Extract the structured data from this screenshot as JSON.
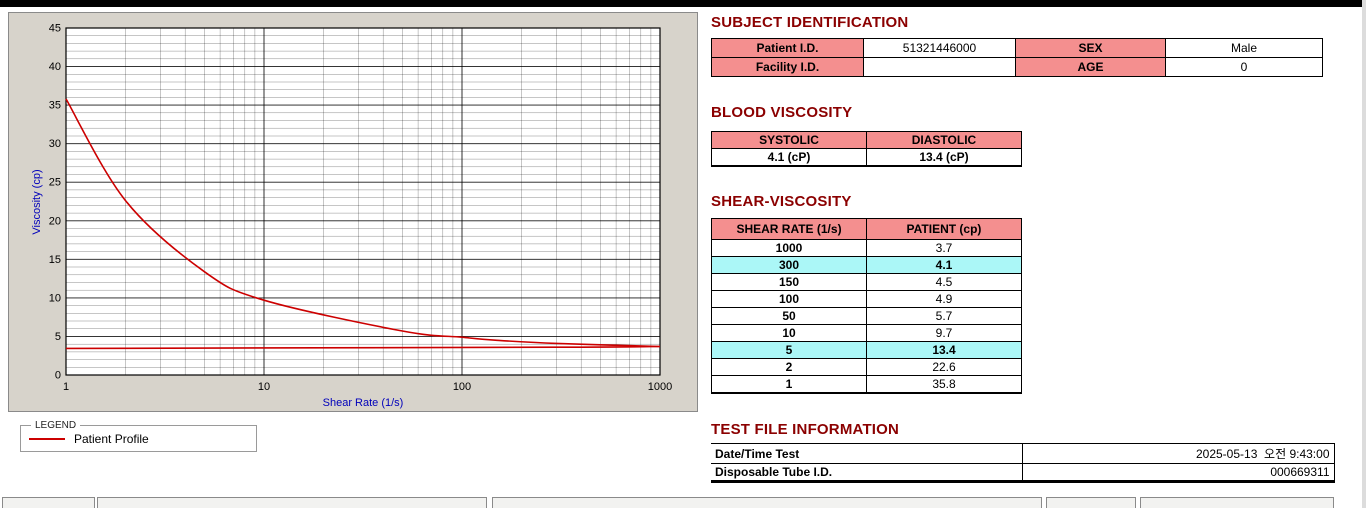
{
  "colors": {
    "accent_maroon": "#8b0000",
    "table_header_pink": "#f48f8f",
    "highlight_cyan": "#abf7f7",
    "series_red": "#cc0000",
    "axis_label_blue": "#0000bb",
    "panel_gray": "#d7d3cb"
  },
  "chart_data": {
    "type": "line",
    "title": "",
    "xlabel": "Shear Rate (1/s)",
    "ylabel": "Viscosity (cp)",
    "x_scale": "log",
    "xlim": [
      1,
      1000
    ],
    "ylim": [
      0,
      45
    ],
    "x_ticks": [
      1,
      10,
      100,
      1000
    ],
    "y_ticks": [
      0,
      5,
      10,
      15,
      20,
      25,
      30,
      35,
      40,
      45
    ],
    "legend": {
      "title": "LEGEND",
      "position": "below-left",
      "items": [
        {
          "label": "Patient Profile",
          "color": "#cc0000"
        }
      ]
    },
    "series": [
      {
        "name": "Patient Profile",
        "color": "#cc0000",
        "x": [
          1,
          2,
          5,
          10,
          50,
          100,
          150,
          300,
          1000
        ],
        "y": [
          35.8,
          22.6,
          13.4,
          9.7,
          5.7,
          4.9,
          4.5,
          4.1,
          3.7
        ]
      },
      {
        "name": "Patient Profile (flat segment)",
        "color": "#cc0000",
        "x": [
          1,
          300,
          1000
        ],
        "y": [
          3.45,
          3.6,
          3.7
        ]
      }
    ]
  },
  "sections": {
    "subject": {
      "title": "SUBJECT IDENTIFICATION",
      "rows": [
        {
          "label1": "Patient I.D.",
          "value1": "51321446000",
          "label2": "SEX",
          "value2": "Male"
        },
        {
          "label1": "Facility I.D.",
          "value1": "",
          "label2": "AGE",
          "value2": "0"
        }
      ]
    },
    "blood_viscosity": {
      "title": "BLOOD VISCOSITY",
      "headers": [
        "SYSTOLIC",
        "DIASTOLIC"
      ],
      "values": [
        "4.1 (cP)",
        "13.4 (cP)"
      ]
    },
    "shear_viscosity": {
      "title": "SHEAR-VISCOSITY",
      "headers": [
        "SHEAR RATE (1/s)",
        "PATIENT (cp)"
      ],
      "rows": [
        {
          "rate": "1000",
          "value": "3.7",
          "highlight": false
        },
        {
          "rate": "300",
          "value": "4.1",
          "highlight": true
        },
        {
          "rate": "150",
          "value": "4.5",
          "highlight": false
        },
        {
          "rate": "100",
          "value": "4.9",
          "highlight": false
        },
        {
          "rate": "50",
          "value": "5.7",
          "highlight": false
        },
        {
          "rate": "10",
          "value": "9.7",
          "highlight": false
        },
        {
          "rate": "5",
          "value": "13.4",
          "highlight": true
        },
        {
          "rate": "2",
          "value": "22.6",
          "highlight": false
        },
        {
          "rate": "1",
          "value": "35.8",
          "highlight": false
        }
      ]
    },
    "test_file": {
      "title": "TEST FILE INFORMATION",
      "rows": [
        {
          "label": "Date/Time Test",
          "value": "2025-05-13  오전 9:43:00"
        },
        {
          "label": "Disposable Tube I.D.",
          "value": "000669311"
        }
      ]
    }
  }
}
